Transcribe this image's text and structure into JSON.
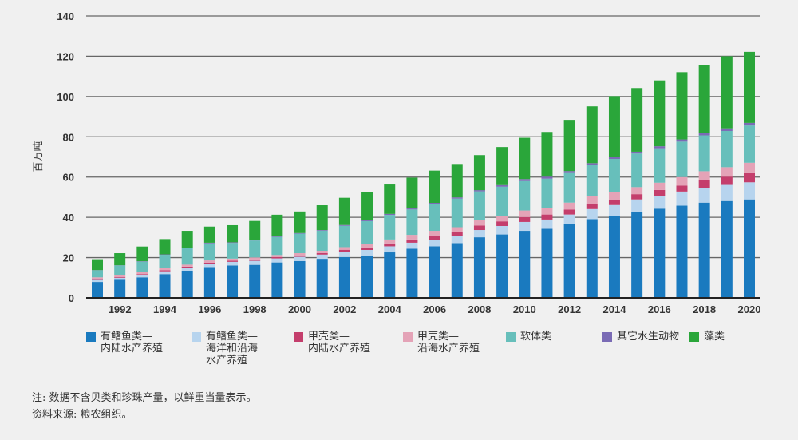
{
  "chart_data": {
    "type": "bar",
    "stacked": true,
    "title": "",
    "xlabel": "",
    "ylabel": "百万吨",
    "ylim": [
      0,
      140
    ],
    "yticks": [
      0,
      20,
      40,
      60,
      80,
      100,
      120,
      140
    ],
    "grid": true,
    "legend_position": "bottom",
    "categories": [
      1991,
      1992,
      1993,
      1994,
      1995,
      1996,
      1997,
      1998,
      1999,
      2000,
      2001,
      2002,
      2003,
      2004,
      2005,
      2006,
      2007,
      2008,
      2009,
      2010,
      2011,
      2012,
      2013,
      2014,
      2015,
      2016,
      2017,
      2018,
      2019,
      2020
    ],
    "xtick_labels": [
      "1992",
      "1994",
      "1996",
      "1998",
      "2000",
      "2002",
      "2004",
      "2006",
      "2008",
      "2010",
      "2012",
      "2014",
      "2016",
      "2018",
      "2020"
    ],
    "series": [
      {
        "name": "有鳍鱼类—内陆水产养殖",
        "color": "#1a7abf",
        "values": [
          7.9,
          9.0,
          10.2,
          11.8,
          13.5,
          15.3,
          16.1,
          16.4,
          17.6,
          18.3,
          19.4,
          20.3,
          21.0,
          22.6,
          24.4,
          25.6,
          27.2,
          30.1,
          31.5,
          33.3,
          34.3,
          36.8,
          39.1,
          40.5,
          42.6,
          44.3,
          45.8,
          47.3,
          48.1,
          48.9
        ]
      },
      {
        "name": "有鳍鱼类—海洋和沿海水产养殖",
        "color": "#b7d4ee",
        "values": [
          1.0,
          1.0,
          1.2,
          1.4,
          1.5,
          1.7,
          1.8,
          2.0,
          2.0,
          2.1,
          2.1,
          2.6,
          2.8,
          3.0,
          3.0,
          3.3,
          3.4,
          3.6,
          4.2,
          4.4,
          4.6,
          4.6,
          5.0,
          5.6,
          6.3,
          6.4,
          7.0,
          7.3,
          8.0,
          8.5
        ]
      },
      {
        "name": "甲壳类—内陆水产养殖",
        "color": "#c43e6c",
        "values": [
          0.3,
          0.4,
          0.4,
          0.5,
          0.5,
          0.5,
          0.6,
          0.7,
          0.7,
          0.7,
          0.8,
          1.0,
          1.2,
          1.4,
          1.6,
          1.8,
          2.0,
          2.2,
          2.3,
          2.4,
          2.5,
          2.5,
          2.7,
          2.6,
          2.6,
          2.9,
          3.0,
          3.7,
          4.1,
          4.5
        ]
      },
      {
        "name": "甲壳类—沿海水产养殖",
        "color": "#e4a3b7",
        "values": [
          1.0,
          1.0,
          1.0,
          1.1,
          1.0,
          1.1,
          1.0,
          1.0,
          1.0,
          1.1,
          1.1,
          1.3,
          1.7,
          2.0,
          2.3,
          2.6,
          2.5,
          2.8,
          2.8,
          3.3,
          3.2,
          3.4,
          3.7,
          3.8,
          3.5,
          3.6,
          4.2,
          4.6,
          4.7,
          5.2
        ]
      },
      {
        "name": "软体类",
        "color": "#67bfbb",
        "values": [
          3.5,
          4.7,
          5.2,
          6.6,
          8.1,
          8.5,
          7.8,
          8.4,
          9.0,
          9.7,
          10.0,
          10.6,
          11.4,
          12.2,
          12.6,
          13.4,
          14.2,
          14.2,
          14.4,
          14.6,
          14.6,
          14.7,
          15.4,
          16.5,
          16.7,
          17.1,
          17.6,
          17.8,
          18.0,
          18.5
        ]
      },
      {
        "name": "其它水生动物",
        "color": "#7a6bb5",
        "values": [
          0.1,
          0.1,
          0.2,
          0.2,
          0.2,
          0.3,
          0.3,
          0.3,
          0.3,
          0.3,
          0.3,
          0.4,
          0.4,
          0.5,
          0.5,
          0.5,
          0.6,
          0.6,
          0.8,
          1.0,
          1.0,
          1.0,
          1.0,
          1.1,
          0.9,
          1.0,
          1.1,
          1.2,
          1.3,
          1.3
        ]
      },
      {
        "name": "藻类",
        "color": "#2aa63a",
        "values": [
          5.4,
          6.0,
          7.3,
          7.6,
          8.5,
          8.0,
          8.5,
          9.4,
          10.7,
          10.7,
          12.3,
          13.5,
          13.9,
          14.6,
          15.3,
          16.0,
          16.6,
          17.4,
          18.9,
          20.5,
          22.2,
          25.4,
          28.2,
          30.1,
          31.6,
          32.7,
          33.4,
          33.6,
          35.8,
          35.3
        ]
      }
    ]
  },
  "legend": [
    {
      "label": "有鳍鱼类—\n内陆水产养殖",
      "color": "#1a7abf"
    },
    {
      "label": "有鳍鱼类—\n海洋和沿海\n水产养殖",
      "color": "#b7d4ee"
    },
    {
      "label": "甲壳类—\n内陆水产养殖",
      "color": "#c43e6c"
    },
    {
      "label": "甲壳类—\n沿海水产养殖",
      "color": "#e4a3b7"
    },
    {
      "label": "软体类",
      "color": "#67bfbb"
    },
    {
      "label": "其它水生动物",
      "color": "#7a6bb5"
    },
    {
      "label": "藻类",
      "color": "#2aa63a"
    }
  ],
  "notes": {
    "note": "注: 数据不含贝类和珍珠产量，以鲜重当量表示。",
    "source": "资料来源: 粮农组织。"
  }
}
